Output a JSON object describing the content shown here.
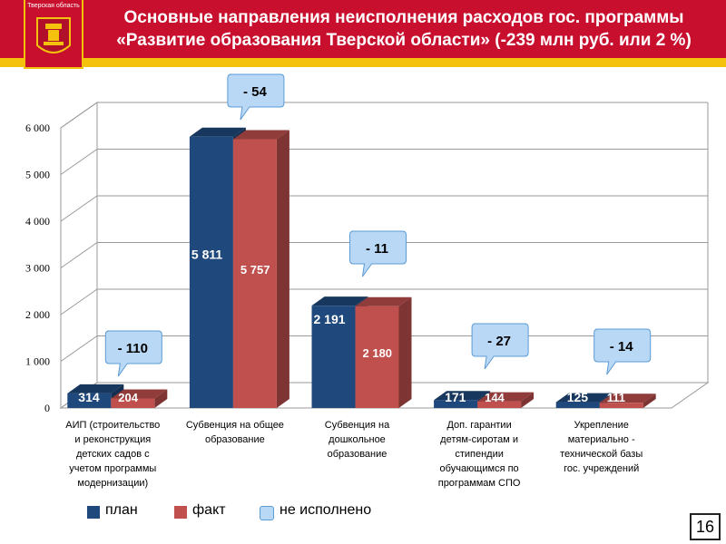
{
  "header": {
    "logo_text": "Тверская область",
    "title_line1": "Основные направления неисполнения расходов гос. программы",
    "title_line2": "«Развитие образования Тверской области» (-239 млн руб. или 2 %)"
  },
  "colors": {
    "header_bg": "#c8102e",
    "header_stripe": "#f4c20d",
    "plan": "#1f497d",
    "fact": "#c0504d",
    "callout": "#b9d8f5"
  },
  "chart_data": {
    "type": "bar",
    "categories": [
      [
        "АИП (строительство",
        "и реконструкция",
        "детских садов с",
        "учетом программы",
        "модернизации)"
      ],
      [
        "Субвенция на общее",
        "образование"
      ],
      [
        "Субвенция на",
        "дошкольное",
        "образование"
      ],
      [
        "Доп. гарантии",
        "детям-сиротам и",
        "стипендии",
        "обучающимся по",
        "программам СПО"
      ],
      [
        "Укрепление",
        "материально -",
        "технической базы",
        "гос. учреждений"
      ]
    ],
    "series": [
      {
        "name": "план",
        "values": [
          314,
          5811,
          2191,
          171,
          125
        ],
        "labels": [
          "314",
          "5 811",
          "2 191",
          "171",
          "125"
        ]
      },
      {
        "name": "факт",
        "values": [
          204,
          5757,
          2180,
          144,
          111
        ],
        "labels": [
          "204",
          "5 757",
          "2 180",
          "144",
          "111"
        ]
      }
    ],
    "unexecuted": [
      "- 110",
      "- 54",
      "- 11",
      "- 27",
      "- 14"
    ],
    "yticks": [
      "0",
      "1 000",
      "2 000",
      "3 000",
      "4 000",
      "5 000",
      "6 000"
    ],
    "ylim": [
      0,
      6000
    ],
    "grid": true
  },
  "legend": {
    "plan": "план",
    "fact": "факт",
    "unexecuted": "не исполнено"
  },
  "page_number": "16"
}
